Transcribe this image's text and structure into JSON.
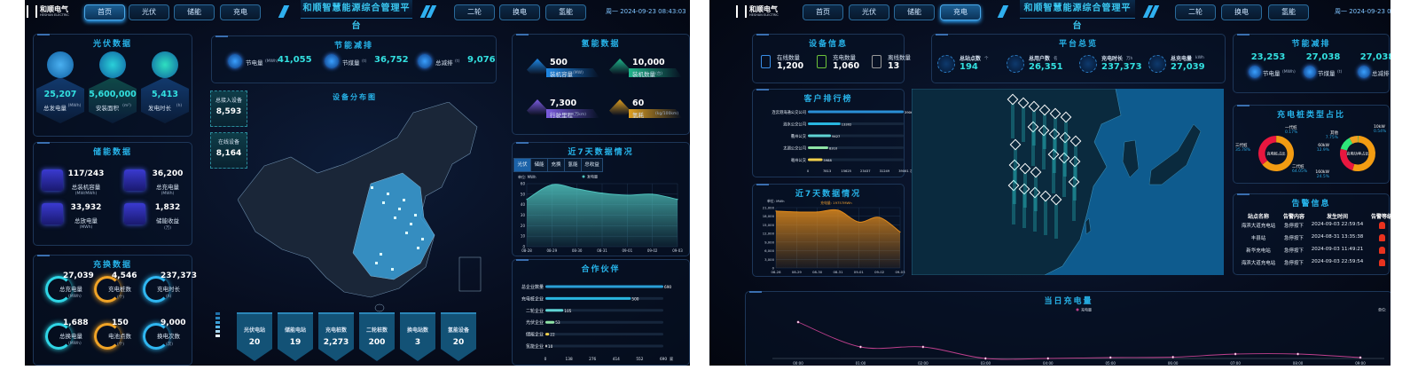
{
  "left": {
    "header": {
      "logo": "和顺电气",
      "logo_sub": "HESHUN ELECTRIC",
      "nav_left": [
        "首页",
        "光伏",
        "储能",
        "充电"
      ],
      "nav_right": [
        "二轮",
        "换电",
        "氢能"
      ],
      "active": "首页",
      "title": "和顺智慧能源综合管理平台",
      "datetime": "周一 2024-09-23 08:43:03"
    },
    "pv": {
      "title": "光伏数据",
      "items": [
        {
          "value": "25,207",
          "label": "总发电量",
          "unit": "(MWh)",
          "icon": "solar-panel-icon"
        },
        {
          "value": "5,600,000",
          "label": "安装面积",
          "unit": "(m²)",
          "icon": "house-icon"
        },
        {
          "value": "5,413",
          "label": "发电时长",
          "unit": "(h)",
          "icon": "list-icon"
        }
      ]
    },
    "storage": {
      "title": "储能数据",
      "items": [
        {
          "value": "117/243",
          "label": "总装机容量",
          "unit": "(MW/MWh)",
          "icon": "gear-icon"
        },
        {
          "value": "36,200",
          "label": "总充电量",
          "unit": "(MWh)",
          "icon": "battery-icon"
        },
        {
          "value": "33,932",
          "label": "总放电量",
          "unit": "(MWh)",
          "icon": "warning-icon"
        },
        {
          "value": "1,832",
          "label": "储能收益",
          "unit": "(万)",
          "icon": "clipboard-icon"
        }
      ]
    },
    "swap": {
      "title": "充换数据",
      "items": [
        {
          "value": "27,039",
          "label": "总充电量",
          "unit": "(MWh)",
          "color": "#2fd6e6"
        },
        {
          "value": "4,546",
          "label": "充电桩数",
          "unit": "(个)",
          "color": "#f0a326"
        },
        {
          "value": "237,373",
          "label": "充电时长",
          "unit": "(h)",
          "color": "#2fb6f0"
        },
        {
          "value": "1,688",
          "label": "总换电量",
          "unit": "(MWh)",
          "color": "#2fd6e6"
        },
        {
          "value": "150",
          "label": "电池点数",
          "unit": "(个)",
          "color": "#f0a326"
        },
        {
          "value": "9,000",
          "label": "换电次数",
          "unit": "(次)",
          "color": "#2fb6f0"
        }
      ]
    },
    "saving": {
      "title": "节能减排",
      "items": [
        {
          "label": "节电量",
          "unit": "(MWh)",
          "value": "41,055",
          "icon": "lightning-icon"
        },
        {
          "label": "节煤量",
          "unit": "(t)",
          "value": "36,752",
          "icon": "coal-icon"
        },
        {
          "label": "总减排",
          "unit": "(t)",
          "value": "9,076",
          "icon": "cloud-icon"
        }
      ]
    },
    "map": {
      "title": "设备分布图",
      "total_label": "总接入设备",
      "total": "8,593",
      "online_label": "在线设备",
      "online": "8,164"
    },
    "stats": [
      {
        "label": "光伏电站",
        "value": "20"
      },
      {
        "label": "储能电站",
        "value": "19"
      },
      {
        "label": "充电桩数",
        "value": "2,273"
      },
      {
        "label": "二轮桩数",
        "value": "200"
      },
      {
        "label": "换电站数",
        "value": "3"
      },
      {
        "label": "氢能设备",
        "value": "20"
      }
    ],
    "map_legend_colors": [
      "#1f6fa8",
      "#2a86c0",
      "#3b9fd6",
      "#5ab6e6",
      "#a6d6f2",
      "#e6f2fa"
    ],
    "hydrogen": {
      "title": "氢能数据",
      "items": [
        {
          "value": "500",
          "label": "装机容量",
          "unit": "(MW)",
          "color": "#1e88e5"
        },
        {
          "value": "10,000",
          "label": "装机数量",
          "unit": "(台)",
          "color": "#1fb58a"
        },
        {
          "value": "7,300",
          "label": "行驶里程",
          "unit": "(万km)",
          "color": "#7c5ce0"
        },
        {
          "value": "60",
          "label": "氢耗",
          "unit": "(kg/100km)",
          "color": "#e0a020"
        }
      ]
    },
    "week": {
      "title": "近7天数据情况",
      "tabs": [
        "光伏",
        "储能",
        "充换",
        "氢能",
        "总收益"
      ],
      "active_tab": "光伏"
    },
    "partners": {
      "title": "合作伙伴"
    }
  },
  "right": {
    "header": {
      "logo": "和顺电气",
      "logo_sub": "HESHUN ELECTRIC",
      "nav_left": [
        "首页",
        "光伏",
        "储能",
        "充电"
      ],
      "nav_right": [
        "二轮",
        "换电",
        "氢能"
      ],
      "active": "充电",
      "title": "和顺智慧能源综合管理平台",
      "datetime": "周一 2024-09-23 08"
    },
    "devices": {
      "title": "设备信息",
      "items": [
        {
          "label": "在线数量",
          "value": "1,200",
          "color": "#3a8ee6"
        },
        {
          "label": "充电数量",
          "value": "1,060",
          "color": "#6cc33a"
        },
        {
          "label": "离线数量",
          "value": "13",
          "color": "#9a9a9a"
        }
      ]
    },
    "customers": {
      "title": "客户排行榜"
    },
    "week": {
      "title": "近7天数据情况"
    },
    "overview": {
      "title": "平台总览",
      "items": [
        {
          "label": "总站点数",
          "unit": "个",
          "value": "194",
          "icon": "station-icon"
        },
        {
          "label": "总用户数",
          "unit": "名",
          "value": "26,351",
          "icon": "users-icon"
        },
        {
          "label": "充电时长",
          "unit": "万h",
          "value": "237,373",
          "icon": "clock-icon"
        },
        {
          "label": "总充电量",
          "unit": "kWh",
          "value": "27,039",
          "icon": "battery-icon"
        }
      ]
    },
    "saving": {
      "title": "节能减排",
      "items": [
        {
          "label": "节电量",
          "unit": "(MWh)",
          "value": "23,253",
          "icon": "lightning-icon"
        },
        {
          "label": "节煤量",
          "unit": "(t)",
          "value": "27,038",
          "icon": "coal-icon"
        },
        {
          "label": "总减排",
          "unit": "(t)",
          "value": "27,038",
          "icon": "cloud-icon"
        }
      ]
    },
    "pile_types": {
      "title": "充电桩类型占比"
    },
    "alarms": {
      "title": "告警信息",
      "headers": [
        "站点名称",
        "告警内容",
        "发生时间",
        "告警等级"
      ],
      "rows": [
        [
          "海滨大道充电站",
          "急停按下",
          "2024-09-03 22:59:54"
        ],
        [
          "丰县站",
          "急停按下",
          "2024-08-31 13:35:38"
        ],
        [
          "新华充电站",
          "急停按下",
          "2024-09-03 11:49:21"
        ],
        [
          "海滨大道充电站",
          "急停按下",
          "2024-09-03 22:59:54"
        ]
      ],
      "level_color": "#e8321e"
    },
    "today": {
      "title": "当日充电量"
    }
  },
  "chart_data": [
    {
      "type": "area",
      "x": [
        "08-28",
        "08-29",
        "08-30",
        "08-31",
        "09-01",
        "09-02",
        "09-03"
      ],
      "series": [
        {
          "name": "发电量",
          "values": [
            45,
            59,
            55,
            51,
            49,
            50,
            45
          ]
        }
      ],
      "ylabel": "单位: MWh",
      "ylim": [
        0,
        60
      ],
      "yticks": [
        "0",
        "10",
        "20",
        "30",
        "40",
        "50",
        "60"
      ],
      "grid": true,
      "legend": "top-center",
      "color": "#4fc3bd"
    },
    {
      "type": "bar",
      "orientation": "horizontal",
      "categories": [
        "总企业数量",
        "充电桩企业",
        "二轮企业",
        "光伏企业",
        "储能企业",
        "氢能企业"
      ],
      "values": [
        690,
        500,
        105,
        53,
        22,
        10
      ],
      "xlim": [
        0,
        690
      ],
      "xticks": [
        "0",
        "138",
        "276",
        "414",
        "552",
        "690"
      ],
      "unit": "家",
      "colors": [
        "#2a9fd6",
        "#29b6e0",
        "#5fd3d3",
        "#8fe3a6",
        "#f2d04b",
        "#cccccc"
      ]
    },
    {
      "type": "bar",
      "orientation": "horizontal",
      "categories": [
        "连云港海通公交公司",
        "涟水公交公司",
        "衢州公交",
        "太湖公交公司",
        "亳州公交"
      ],
      "values": [
        39061,
        13302,
        9427,
        8310,
        5988
      ],
      "xlim": [
        0,
        39061
      ],
      "xticks": [
        "0",
        "7813",
        "15625",
        "23437",
        "31249",
        "39061"
      ],
      "unit": "次",
      "colors": [
        "#2a8fd6",
        "#29b6e0",
        "#5fd3d3",
        "#8fe3a6",
        "#f2d04b"
      ]
    },
    {
      "type": "area",
      "x": [
        "08-28",
        "08-29",
        "08-30",
        "08-31",
        "09-01",
        "09-02",
        "09-03"
      ],
      "series": [
        {
          "values": [
            19800,
            19500,
            19500,
            20100,
            16000,
            17600,
            12500
          ]
        }
      ],
      "ylabel": "单位: MWh",
      "ylim": [
        0,
        21000
      ],
      "yticks": [
        "0",
        "3,000",
        "6,000",
        "9,000",
        "12,000",
        "15,000",
        "18,000",
        "21,000"
      ],
      "tooltip": "充电量: 19757MWh",
      "grid": true,
      "color": "#e08a1c"
    },
    {
      "type": "pie",
      "donut": true,
      "center_label": "充电桩占比",
      "slices": [
        {
          "name": "一代桩",
          "value": 0.17,
          "label": "0.17%",
          "color": "#2ecc71"
        },
        {
          "name": "二代桩",
          "value": 64.05,
          "label": "64.05%",
          "color": "#f39c12"
        },
        {
          "name": "三代桩",
          "value": 35.78,
          "label": "35.78%",
          "color": "#e8173f"
        }
      ]
    },
    {
      "type": "pie",
      "donut": true,
      "center_label": "充电功率占比",
      "slices": [
        {
          "name": "10kW",
          "value": 0.54,
          "label": "0.54%",
          "color": "#2ecc71"
        },
        {
          "name": "",
          "value": 54.31,
          "label": "",
          "color": "#f39c12"
        },
        {
          "name": "160kW",
          "value": 24.5,
          "label": "24.5%",
          "color": "#e8173f"
        },
        {
          "name": "60kW",
          "value": 12.9,
          "label": "12.9%",
          "color": "#2ee87a"
        },
        {
          "name": "其他",
          "value": 7.75,
          "label": "7.75%",
          "color": "#f0a020"
        }
      ]
    },
    {
      "type": "line",
      "x": [
        "00:00",
        "01:00",
        "02:00",
        "03:00",
        "04:00",
        "05:00",
        "06:00",
        "07:00",
        "08:00",
        "09:00"
      ],
      "series": [
        {
          "name": "充电量",
          "values": [
            41,
            13,
            13,
            0,
            0,
            1,
            1.5,
            5,
            5,
            1
          ]
        }
      ],
      "ylabel": "单位:",
      "ylim": [
        0,
        45
      ],
      "legend": "top-center",
      "color": "#c0408e"
    }
  ]
}
